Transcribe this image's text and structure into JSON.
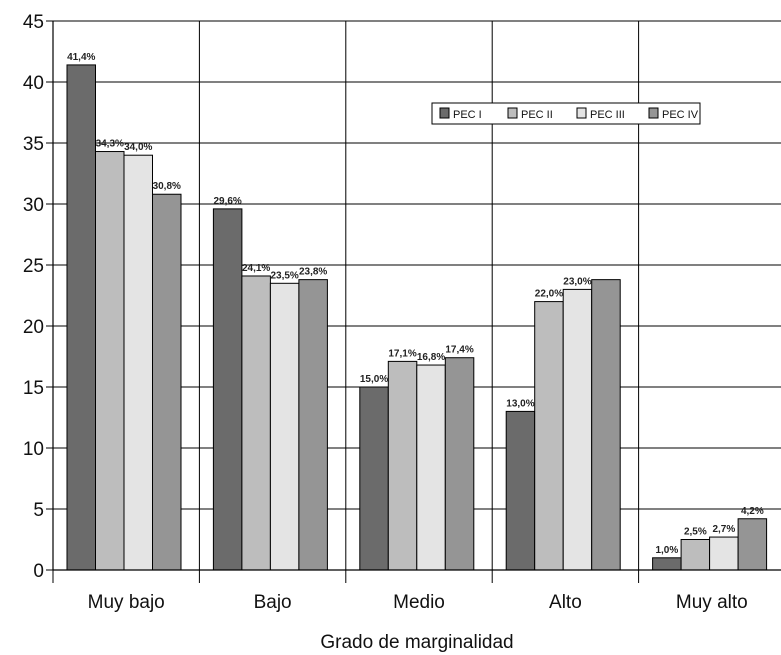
{
  "chart_data": {
    "type": "bar",
    "title": "",
    "xlabel": "Grado de marginalidad",
    "ylabel": "",
    "ylim": [
      0,
      45
    ],
    "yticks": [
      0,
      5,
      10,
      15,
      20,
      25,
      30,
      35,
      40,
      45
    ],
    "grid": true,
    "legend_position": "top-right",
    "categories": [
      "Muy bajo",
      "Bajo",
      "Medio",
      "Alto",
      "Muy alto"
    ],
    "series": [
      {
        "name": "PEC I",
        "color": "#6b6b6b",
        "values": [
          41.4,
          29.6,
          15.0,
          13.0,
          1.0
        ],
        "labels": [
          "41,4%",
          "29,6%",
          "15,0%",
          "13,0%",
          "1,0%"
        ]
      },
      {
        "name": "PEC II",
        "color": "#bdbdbd",
        "values": [
          34.3,
          24.1,
          17.1,
          22.0,
          2.5
        ],
        "labels": [
          "34,3%",
          "24,1%",
          "17,1%",
          "22,0%",
          "2,5%"
        ]
      },
      {
        "name": "PEC III",
        "color": "#e4e4e4",
        "values": [
          34.0,
          23.5,
          16.8,
          23.0,
          2.7
        ],
        "labels": [
          "34,0%",
          "23,5%",
          "16,8%",
          "23,0%",
          "2,7%"
        ]
      },
      {
        "name": "PEC IV",
        "color": "#959595",
        "values": [
          30.8,
          23.8,
          17.4,
          23.8,
          4.2
        ],
        "labels": [
          "30,8%",
          "23,8%",
          "17,4%",
          "",
          "4,2%"
        ]
      }
    ]
  }
}
